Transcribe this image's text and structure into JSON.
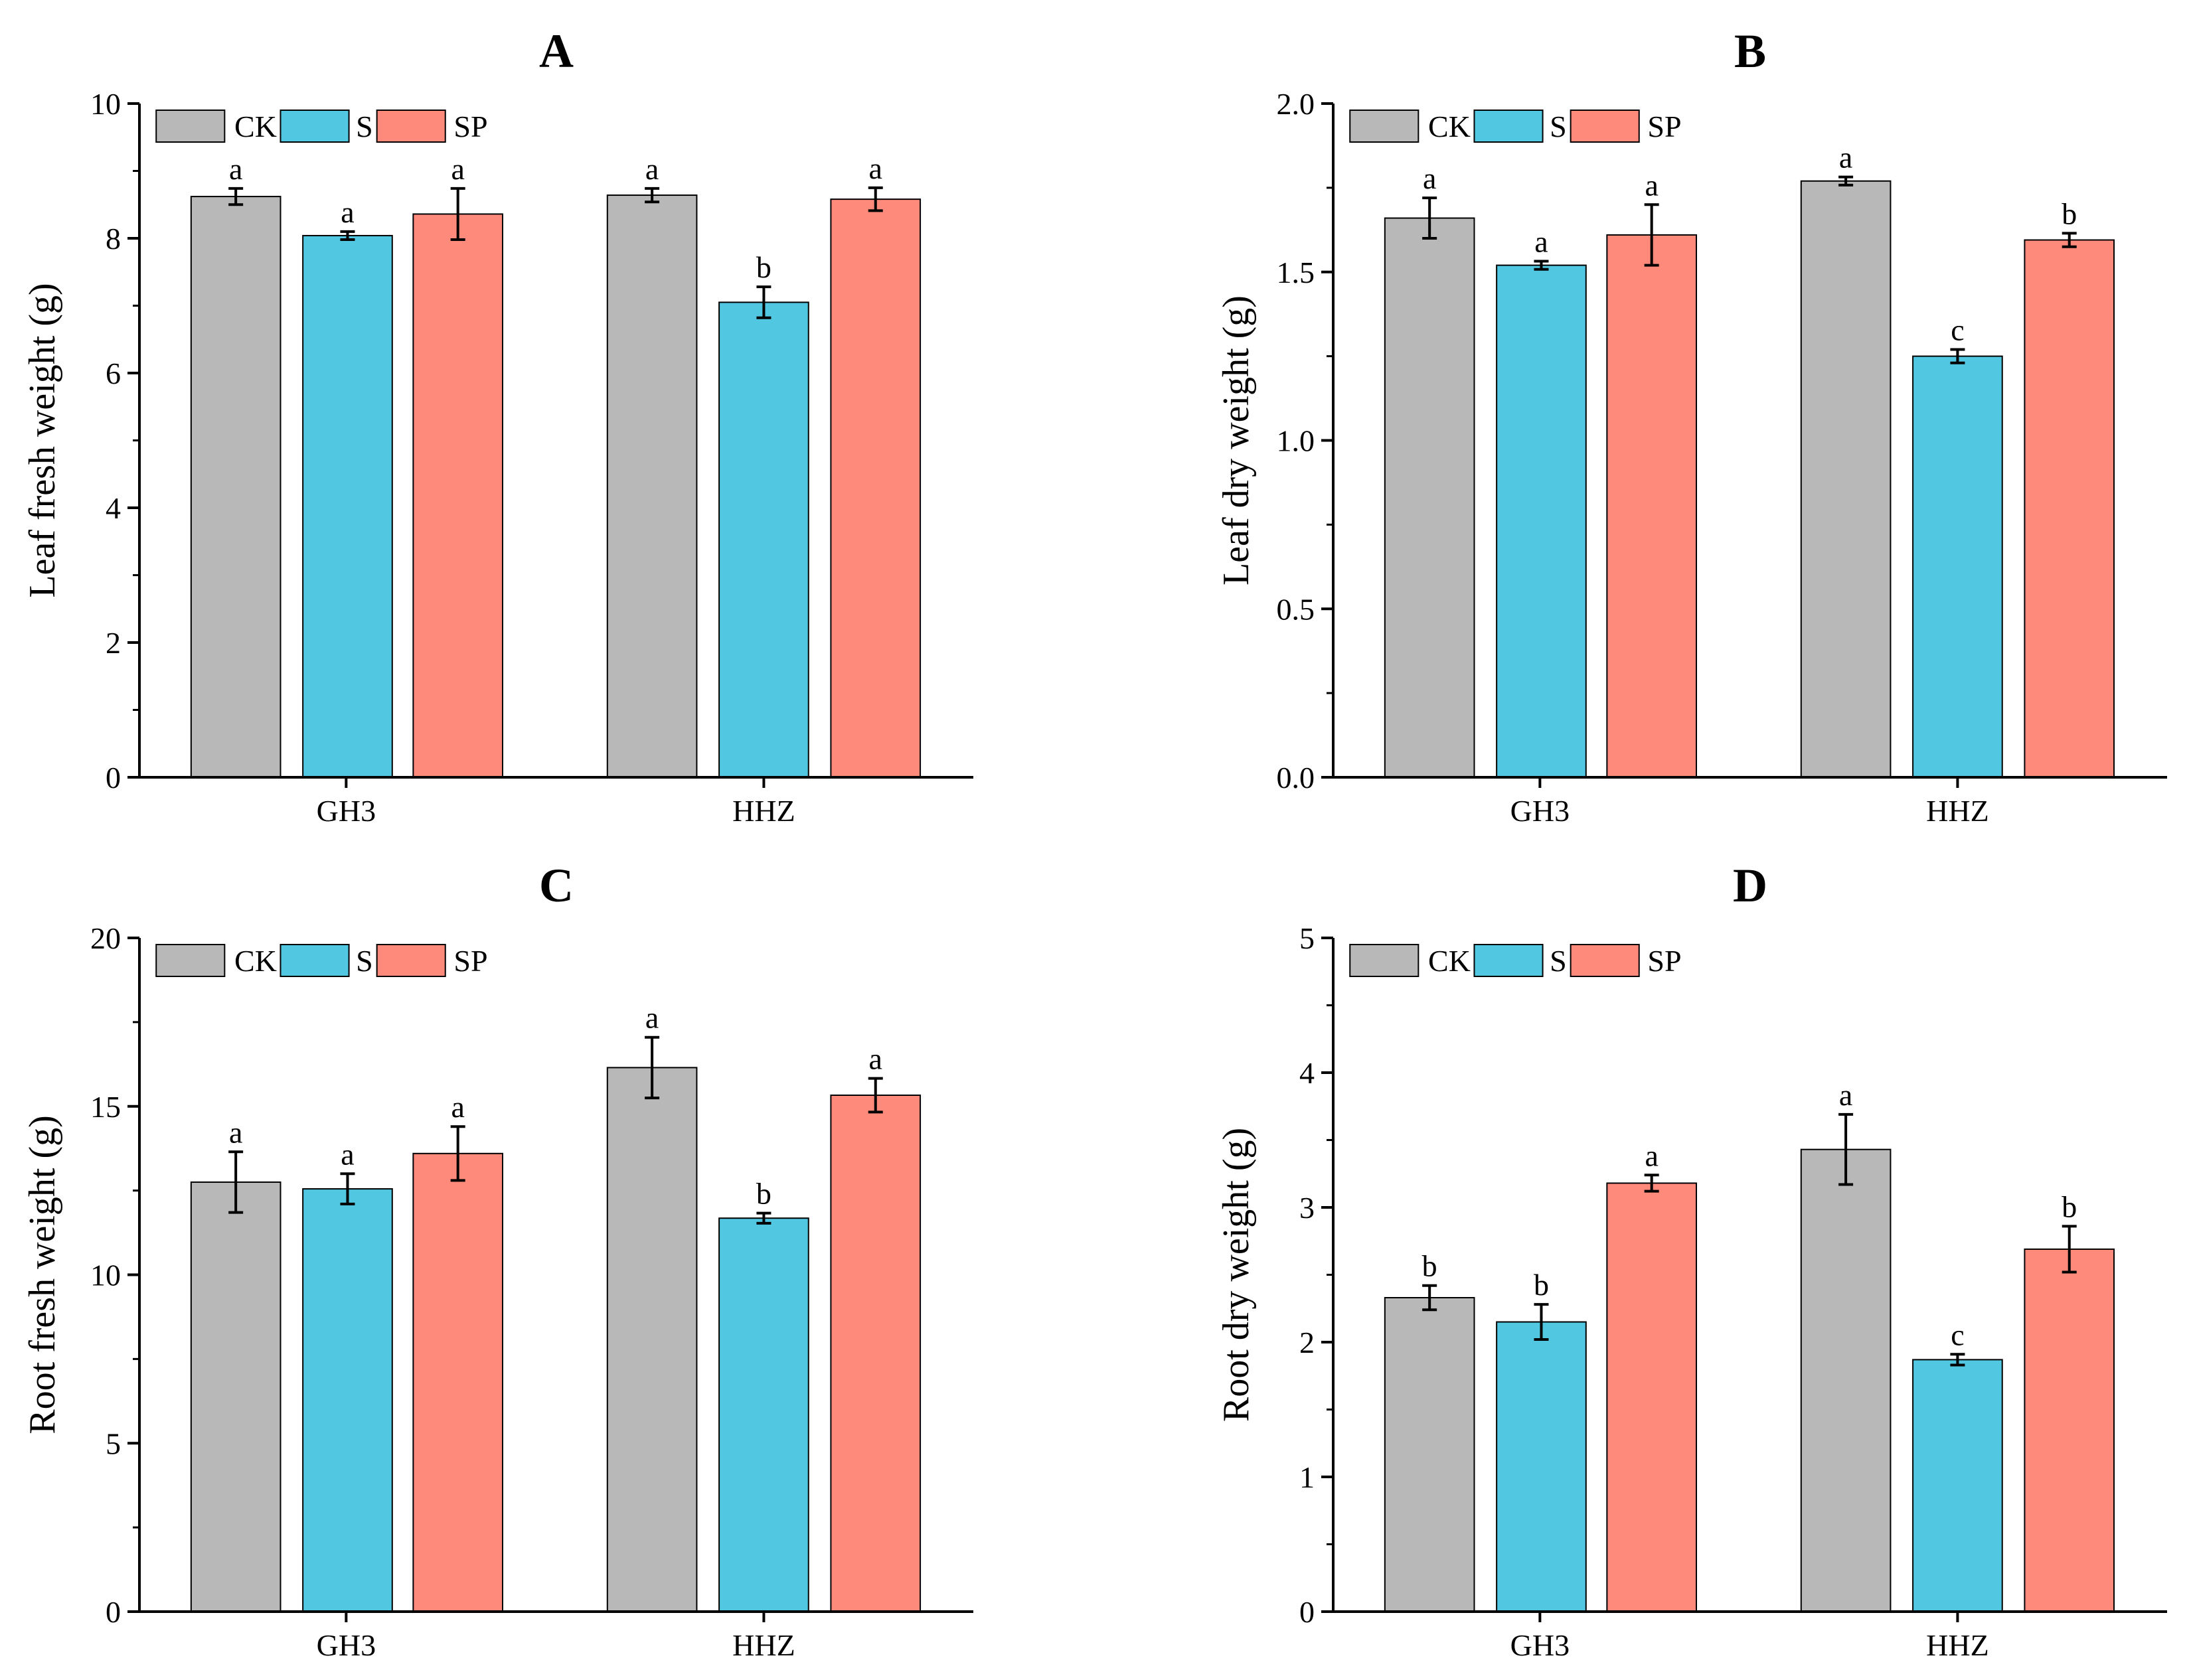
{
  "colors": {
    "CK": "#b8b8b8",
    "S": "#52c7e1",
    "SP": "#fe8a7c",
    "axis": "#000000"
  },
  "legend": [
    "CK",
    "S",
    "SP"
  ],
  "chart_data": [
    {
      "type": "bar",
      "panel": "A",
      "title": "A",
      "ylabel": "Leaf fresh weight (g)",
      "categories": [
        "GH3",
        "HHZ"
      ],
      "ylim": [
        0,
        10
      ],
      "yticks": [
        0,
        2,
        4,
        6,
        8,
        10
      ],
      "ytick_labels": [
        "0",
        "2",
        "4",
        "6",
        "8",
        "10"
      ],
      "series": [
        {
          "name": "CK",
          "values": [
            8.62,
            8.64
          ],
          "errors": [
            0.12,
            0.1
          ],
          "letters": [
            "a",
            "a"
          ]
        },
        {
          "name": "S",
          "values": [
            8.04,
            7.05
          ],
          "errors": [
            0.06,
            0.23
          ],
          "letters": [
            "a",
            "b"
          ]
        },
        {
          "name": "SP",
          "values": [
            8.36,
            8.58
          ],
          "errors": [
            0.38,
            0.17
          ],
          "letters": [
            "a",
            "a"
          ]
        }
      ]
    },
    {
      "type": "bar",
      "panel": "B",
      "title": "B",
      "ylabel": "Leaf dry weight (g)",
      "categories": [
        "GH3",
        "HHZ"
      ],
      "ylim": [
        0,
        2.0
      ],
      "yticks": [
        0,
        0.5,
        1.0,
        1.5,
        2.0
      ],
      "ytick_labels": [
        "0.0",
        "0.5",
        "1.0",
        "1.5",
        "2.0"
      ],
      "series": [
        {
          "name": "CK",
          "values": [
            1.66,
            1.77
          ],
          "errors": [
            0.06,
            0.012
          ],
          "letters": [
            "a",
            "a"
          ]
        },
        {
          "name": "S",
          "values": [
            1.52,
            1.25
          ],
          "errors": [
            0.012,
            0.02
          ],
          "letters": [
            "a",
            "c"
          ]
        },
        {
          "name": "SP",
          "values": [
            1.61,
            1.595
          ],
          "errors": [
            0.09,
            0.02
          ],
          "letters": [
            "a",
            "b"
          ]
        }
      ]
    },
    {
      "type": "bar",
      "panel": "C",
      "title": "C",
      "ylabel": "Root fresh weight (g)",
      "categories": [
        "GH3",
        "HHZ"
      ],
      "ylim": [
        0,
        20
      ],
      "yticks": [
        0,
        5,
        10,
        15,
        20
      ],
      "ytick_labels": [
        "0",
        "5",
        "10",
        "15",
        "20"
      ],
      "series": [
        {
          "name": "CK",
          "values": [
            12.75,
            16.15
          ],
          "errors": [
            0.9,
            0.9
          ],
          "letters": [
            "a",
            "a"
          ]
        },
        {
          "name": "S",
          "values": [
            12.55,
            11.68
          ],
          "errors": [
            0.45,
            0.15
          ],
          "letters": [
            "a",
            "b"
          ]
        },
        {
          "name": "SP",
          "values": [
            13.6,
            15.33
          ],
          "errors": [
            0.8,
            0.5
          ],
          "letters": [
            "a",
            "a"
          ]
        }
      ]
    },
    {
      "type": "bar",
      "panel": "D",
      "title": "D",
      "ylabel": "Root dry weight (g)",
      "categories": [
        "GH3",
        "HHZ"
      ],
      "ylim": [
        0,
        5
      ],
      "yticks": [
        0,
        1,
        2,
        3,
        4,
        5
      ],
      "ytick_labels": [
        "0",
        "1",
        "2",
        "3",
        "4",
        "5"
      ],
      "series": [
        {
          "name": "CK",
          "values": [
            2.33,
            3.43
          ],
          "errors": [
            0.09,
            0.26
          ],
          "letters": [
            "b",
            "a"
          ]
        },
        {
          "name": "S",
          "values": [
            2.15,
            1.87
          ],
          "errors": [
            0.13,
            0.04
          ],
          "letters": [
            "b",
            "c"
          ]
        },
        {
          "name": "SP",
          "values": [
            3.18,
            2.69
          ],
          "errors": [
            0.06,
            0.17
          ],
          "letters": [
            "a",
            "b"
          ]
        }
      ]
    }
  ]
}
